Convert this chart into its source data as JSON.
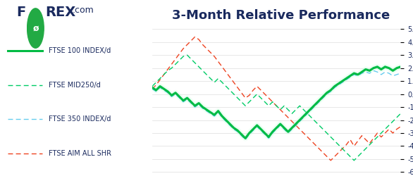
{
  "title": "3-Month Relative Performance",
  "title_fontsize": 13,
  "title_color": "#1a2a5e",
  "title_fontweight": "bold",
  "ylim": [
    -6.5,
    5.5
  ],
  "yticks": [
    -6.0,
    -5.0,
    -4.0,
    -3.0,
    -2.0,
    -1.0,
    0.0,
    1.0,
    2.0,
    3.0,
    4.0,
    5.0
  ],
  "background_color": "#ffffff",
  "series": {
    "ftse100": {
      "label": "FTSE 100 INDEX/d",
      "color": "#00bb44",
      "linewidth": 2.2,
      "linestyle": "-",
      "zorder": 5
    },
    "ftse_mid250": {
      "label": "FTSE MID250/d",
      "color": "#00cc66",
      "linewidth": 1.0,
      "linestyle": "--",
      "zorder": 3
    },
    "ftse350": {
      "label": "FTSE 350 INDEX/d",
      "color": "#66ccee",
      "linewidth": 1.0,
      "linestyle": "--",
      "zorder": 4
    },
    "ftse_aim": {
      "label": "FTSE AIM ALL SHR",
      "color": "#ee4422",
      "linewidth": 1.0,
      "linestyle": "--",
      "zorder": 2
    }
  },
  "logo_color_main": "#1a2a5e",
  "logo_color_green": "#22aa44",
  "tick_color": "#1a2a5e",
  "tick_fontsize": 7,
  "legend_fontsize": 7,
  "legend_label_color": "#1a2a5e"
}
